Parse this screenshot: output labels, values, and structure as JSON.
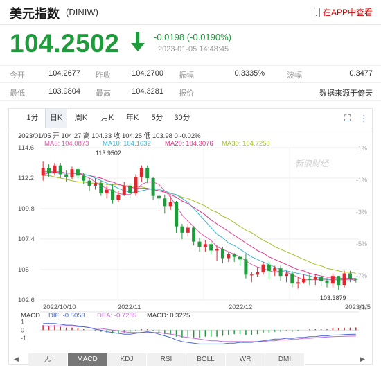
{
  "header": {
    "title": "美元指数",
    "code": "(DINIW)",
    "app_link": "在APP中查看"
  },
  "quote": {
    "price": "104.2502",
    "change": "-0.0198 (-0.0190%)",
    "datetime": "2023-01-05 14:48:45",
    "color": "#1e9b3a"
  },
  "stats": [
    {
      "label": "今开",
      "value": "104.2677"
    },
    {
      "label": "昨收",
      "value": "104.2700"
    },
    {
      "label": "振幅",
      "value": "0.3335%"
    },
    {
      "label": "波幅",
      "value": "0.3477"
    },
    {
      "label": "最低",
      "value": "103.9804"
    },
    {
      "label": "最高",
      "value": "104.3281"
    },
    {
      "label": "报价",
      "value": ""
    },
    {
      "label": "",
      "value": "数据来源于倚天"
    }
  ],
  "tabs": [
    "1分",
    "日K",
    "周K",
    "月K",
    "年K",
    "5分",
    "30分"
  ],
  "active_tab": "日K",
  "chart_info": {
    "ohlc_line": "2023/01/05 开 104.27 高 104.33 收 104.25 低 103.98 0 -0.02%",
    "ma5": "MA5: 104.0873",
    "ma10": "MA10: 104.1632",
    "ma20": "MA20: 104.3076",
    "ma30": "MA30: 104.7258",
    "macd_label": "MACD",
    "dif": "DIF: -0.5053",
    "dea": "DEA: -0.7285",
    "macd_val": "MACD: 0.3225",
    "watermark": "新浪财经"
  },
  "chart_data": {
    "type": "candlestick",
    "y_ticks": [
      "114.6",
      "112.2",
      "109.8",
      "107.4",
      "105",
      "102.6"
    ],
    "pct_ticks": [
      "1%",
      "-1%",
      "-3%",
      "-5%",
      "-7%",
      "-9%"
    ],
    "x_ticks": [
      "2022/10/10",
      "2022/11",
      "2022/12",
      "2023/1/5"
    ],
    "macd_ticks": [
      "1",
      "0",
      "-1"
    ],
    "ylim": [
      102.6,
      114.6
    ],
    "max_label": "113.9502",
    "min_label": "103.3879",
    "candles": [
      [
        112.4,
        113.0,
        112.0,
        113.5
      ],
      [
        113.0,
        112.6,
        112.3,
        113.3
      ],
      [
        112.6,
        113.2,
        112.4,
        113.4
      ],
      [
        113.2,
        112.5,
        112.2,
        113.4
      ],
      [
        112.5,
        112.3,
        111.9,
        112.8
      ],
      [
        112.3,
        112.9,
        112.1,
        113.1
      ],
      [
        112.9,
        112.4,
        112.2,
        113.0
      ],
      [
        112.4,
        112.0,
        111.7,
        112.6
      ],
      [
        112.0,
        111.6,
        111.2,
        112.2
      ],
      [
        111.6,
        111.8,
        111.3,
        112.2
      ],
      [
        111.8,
        111.0,
        110.8,
        112.0
      ],
      [
        111.0,
        111.3,
        110.6,
        111.6
      ],
      [
        111.3,
        110.5,
        110.2,
        111.7
      ],
      [
        110.5,
        110.9,
        110.3,
        111.2
      ],
      [
        110.9,
        111.6,
        110.8,
        111.9
      ],
      [
        111.6,
        111.0,
        110.6,
        111.8
      ],
      [
        111.0,
        112.3,
        110.8,
        112.5
      ],
      [
        112.3,
        113.0,
        111.9,
        113.2
      ],
      [
        113.0,
        112.2,
        111.8,
        113.2
      ],
      [
        112.2,
        110.8,
        110.5,
        112.3
      ],
      [
        110.8,
        110.6,
        110.0,
        111.1
      ],
      [
        110.6,
        110.0,
        109.4,
        110.9
      ],
      [
        110.0,
        110.3,
        109.7,
        110.8
      ],
      [
        110.3,
        108.4,
        107.9,
        110.4
      ],
      [
        108.4,
        107.9,
        107.4,
        108.6
      ],
      [
        107.9,
        108.3,
        107.6,
        108.6
      ],
      [
        108.3,
        107.2,
        106.9,
        108.4
      ],
      [
        107.2,
        106.8,
        106.4,
        107.5
      ],
      [
        106.8,
        107.0,
        106.4,
        107.3
      ],
      [
        107.0,
        106.5,
        106.2,
        107.2
      ],
      [
        106.5,
        106.6,
        105.7,
        106.9
      ],
      [
        106.6,
        105.9,
        105.5,
        106.8
      ],
      [
        105.9,
        106.2,
        105.6,
        106.4
      ],
      [
        106.2,
        106.0,
        105.6,
        106.3
      ],
      [
        106.0,
        105.8,
        105.3,
        106.1
      ],
      [
        105.8,
        104.6,
        104.3,
        106.2
      ],
      [
        104.6,
        104.6,
        104.0,
        104.8
      ],
      [
        104.6,
        104.8,
        104.4,
        105.2
      ],
      [
        104.8,
        105.4,
        104.6,
        105.6
      ],
      [
        105.4,
        104.9,
        104.2,
        105.6
      ],
      [
        104.9,
        105.1,
        104.5,
        105.3
      ],
      [
        105.1,
        104.5,
        104.1,
        105.3
      ],
      [
        104.5,
        104.7,
        104.0,
        104.9
      ],
      [
        104.7,
        103.9,
        103.6,
        104.9
      ],
      [
        103.9,
        104.0,
        103.5,
        104.4
      ],
      [
        104.0,
        104.3,
        103.9,
        104.6
      ],
      [
        104.3,
        104.2,
        103.8,
        104.6
      ],
      [
        104.2,
        104.4,
        103.8,
        104.6
      ],
      [
        104.4,
        104.1,
        103.7,
        104.8
      ],
      [
        104.1,
        103.9,
        103.6,
        104.3
      ],
      [
        103.9,
        104.5,
        103.6,
        104.7
      ],
      [
        104.5,
        103.8,
        103.4,
        104.5
      ],
      [
        103.8,
        104.7,
        103.6,
        104.9
      ],
      [
        104.7,
        104.3,
        104.0,
        104.9
      ],
      [
        104.3,
        104.2,
        103.98,
        104.33
      ]
    ],
    "ma5": [
      112.5,
      112.6,
      112.7,
      112.7,
      112.6,
      112.6,
      112.6,
      112.4,
      112.2,
      111.9,
      111.6,
      111.4,
      111.2,
      111.0,
      110.9,
      110.9,
      111.2,
      111.7,
      111.9,
      111.9,
      111.7,
      111.2,
      110.7,
      110.0,
      109.3,
      108.8,
      108.4,
      107.9,
      107.6,
      107.3,
      106.8,
      106.6,
      106.4,
      106.2,
      106.0,
      105.7,
      105.4,
      105.2,
      105.1,
      104.9,
      104.8,
      104.9,
      104.8,
      104.6,
      104.4,
      104.2,
      104.2,
      104.2,
      104.2,
      104.2,
      104.2,
      104.2,
      104.2,
      104.3,
      104.1
    ],
    "ma10": [
      112.6,
      112.6,
      112.6,
      112.6,
      112.6,
      112.6,
      112.5,
      112.5,
      112.4,
      112.2,
      112.0,
      111.8,
      111.6,
      111.4,
      111.2,
      111.1,
      111.1,
      111.2,
      111.3,
      111.4,
      111.3,
      111.2,
      111.0,
      110.9,
      110.6,
      110.3,
      109.8,
      109.3,
      108.8,
      108.3,
      107.8,
      107.5,
      107.1,
      106.9,
      106.6,
      106.3,
      106.0,
      105.8,
      105.6,
      105.4,
      105.2,
      105.0,
      104.9,
      104.8,
      104.7,
      104.6,
      104.5,
      104.4,
      104.3,
      104.3,
      104.2,
      104.2,
      104.2,
      104.2,
      104.2
    ],
    "ma20": [
      112.7,
      112.7,
      112.7,
      112.6,
      112.6,
      112.6,
      112.6,
      112.5,
      112.4,
      112.3,
      112.2,
      112.0,
      111.9,
      111.7,
      111.6,
      111.5,
      111.4,
      111.4,
      111.4,
      111.3,
      111.2,
      111.1,
      110.9,
      110.7,
      110.4,
      110.2,
      109.9,
      109.6,
      109.3,
      108.9,
      108.6,
      108.3,
      108.0,
      107.7,
      107.4,
      107.1,
      106.8,
      106.5,
      106.3,
      106.0,
      105.8,
      105.6,
      105.4,
      105.2,
      105.0,
      104.9,
      104.7,
      104.6,
      104.5,
      104.4,
      104.4,
      104.3,
      104.3,
      104.3,
      104.3
    ],
    "ma30": [
      112.4,
      112.4,
      112.3,
      112.2,
      112.1,
      112.0,
      111.9,
      111.9,
      111.8,
      111.8,
      111.8,
      111.7,
      111.7,
      111.7,
      111.6,
      111.6,
      111.5,
      111.5,
      111.4,
      111.3,
      111.2,
      111.1,
      111.0,
      110.9,
      110.7,
      110.6,
      110.4,
      110.2,
      110.0,
      109.7,
      109.5,
      109.2,
      109.0,
      108.7,
      108.4,
      108.1,
      107.9,
      107.6,
      107.3,
      107.1,
      106.8,
      106.6,
      106.4,
      106.2,
      106.0,
      105.8,
      105.6,
      105.4,
      105.3,
      105.1,
      105.0,
      104.9,
      104.8,
      104.8,
      104.7
    ],
    "macd_hist": [
      0.6,
      0.5,
      0.6,
      0.4,
      0.3,
      0.3,
      0.2,
      0.1,
      0.0,
      -0.1,
      -0.2,
      -0.3,
      -0.4,
      -0.4,
      -0.3,
      -0.3,
      -0.1,
      0.1,
      0.1,
      -0.1,
      -0.3,
      -0.5,
      -0.5,
      -0.8,
      -0.9,
      -0.8,
      -0.9,
      -0.9,
      -0.8,
      -0.8,
      -0.8,
      -0.7,
      -0.6,
      -0.5,
      -0.5,
      -0.6,
      -0.6,
      -0.5,
      -0.3,
      -0.3,
      -0.2,
      -0.2,
      -0.1,
      -0.2,
      -0.1,
      0.0,
      0.1,
      0.1,
      0.1,
      0.1,
      0.2,
      0.2,
      0.3,
      0.3,
      0.32
    ],
    "dif": [
      0.8,
      0.8,
      0.8,
      0.7,
      0.6,
      0.6,
      0.5,
      0.4,
      0.3,
      0.1,
      0.0,
      -0.2,
      -0.3,
      -0.4,
      -0.5,
      -0.5,
      -0.4,
      -0.3,
      -0.2,
      -0.3,
      -0.5,
      -0.7,
      -0.9,
      -1.2,
      -1.4,
      -1.5,
      -1.6,
      -1.7,
      -1.7,
      -1.7,
      -1.7,
      -1.7,
      -1.6,
      -1.6,
      -1.5,
      -1.5,
      -1.5,
      -1.4,
      -1.3,
      -1.2,
      -1.1,
      -1.1,
      -1.0,
      -1.0,
      -0.9,
      -0.9,
      -0.8,
      -0.8,
      -0.7,
      -0.7,
      -0.6,
      -0.6,
      -0.55,
      -0.52,
      -0.5053
    ],
    "dea": [
      0.5,
      0.5,
      0.5,
      0.5,
      0.5,
      0.5,
      0.4,
      0.4,
      0.3,
      0.2,
      0.2,
      0.1,
      0.0,
      -0.1,
      -0.2,
      -0.3,
      -0.3,
      -0.3,
      -0.3,
      -0.3,
      -0.3,
      -0.4,
      -0.5,
      -0.6,
      -0.8,
      -0.9,
      -1.0,
      -1.1,
      -1.2,
      -1.3,
      -1.3,
      -1.4,
      -1.4,
      -1.4,
      -1.4,
      -1.4,
      -1.4,
      -1.4,
      -1.4,
      -1.3,
      -1.3,
      -1.2,
      -1.2,
      -1.1,
      -1.1,
      -1.0,
      -1.0,
      -0.95,
      -0.9,
      -0.85,
      -0.8,
      -0.78,
      -0.75,
      -0.74,
      -0.7285
    ]
  },
  "indicator_tabs": [
    "无",
    "MACD",
    "KDJ",
    "RSI",
    "BOLL",
    "WR",
    "DMI"
  ],
  "active_indicator": "MACD",
  "colors": {
    "up": "#e2262e",
    "down": "#1e9b3a",
    "ma5": "#e55aa9",
    "ma10": "#3bb7d6",
    "ma20": "#e0338a",
    "ma30": "#a8be2a",
    "dif": "#4a6ad0",
    "dea": "#c36bd8"
  }
}
